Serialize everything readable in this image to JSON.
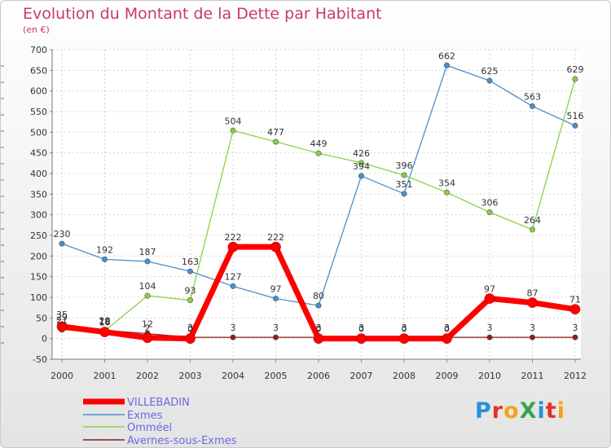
{
  "title": "Evolution du Montant de la Dette par Habitant",
  "unit": "(en €)",
  "logo": "ProXiti",
  "chart_data": {
    "type": "line",
    "x": [
      "2000",
      "2001",
      "2002",
      "2003",
      "2004",
      "2005",
      "2006",
      "2007",
      "2008",
      "2009",
      "2010",
      "2011",
      "2012"
    ],
    "ylim": [
      -50,
      700
    ],
    "yticks": [
      -50,
      0,
      50,
      100,
      150,
      200,
      250,
      300,
      350,
      400,
      450,
      500,
      550,
      600,
      650,
      700
    ],
    "grid": true,
    "legend_position": "bottom-left",
    "series": [
      {
        "name": "VILLEBADIN",
        "color": "#ff0000",
        "values": [
          29,
          16,
          2,
          0,
          222,
          222,
          0,
          0,
          0,
          0,
          97,
          87,
          71
        ]
      },
      {
        "name": "Exmes",
        "color": "#4a8fd0",
        "values": [
          230,
          192,
          187,
          163,
          127,
          97,
          80,
          394,
          351,
          662,
          625,
          563,
          516
        ]
      },
      {
        "name": "Omméel",
        "color": "#88d048",
        "values": [
          21,
          18,
          104,
          93,
          504,
          477,
          449,
          426,
          396,
          354,
          306,
          264,
          629
        ]
      },
      {
        "name": "Avernes-sous-Exmes",
        "color": "#8a1f1f",
        "values": [
          35,
          20,
          12,
          3,
          3,
          3,
          3,
          3,
          3,
          3,
          3,
          3,
          3
        ]
      }
    ]
  }
}
